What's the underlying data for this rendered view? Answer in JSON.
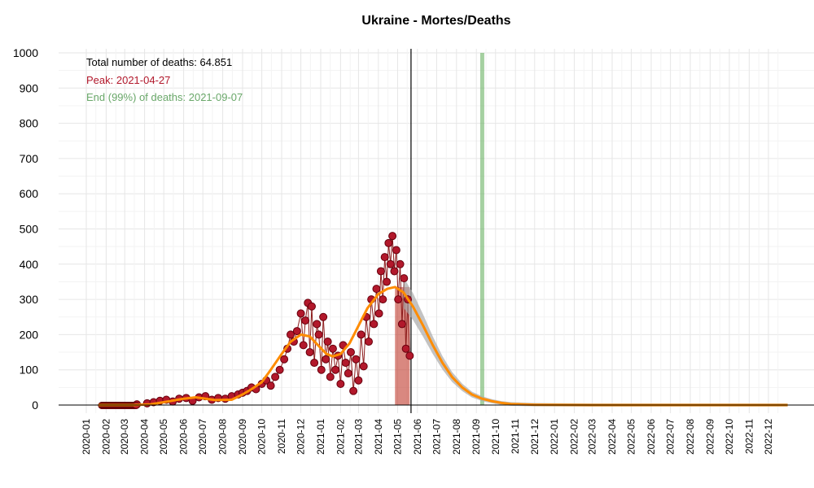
{
  "chart_data": {
    "type": "scatter",
    "title": "Ukraine - Mortes/Deaths",
    "xlabel": "",
    "ylabel": "",
    "ylim": [
      0,
      1000
    ],
    "yticks": [
      0,
      100,
      200,
      300,
      400,
      500,
      600,
      700,
      800,
      900,
      1000
    ],
    "xlim": [
      "2019-12-10",
      "2023-01-10"
    ],
    "xticks": [
      "2020-01",
      "2020-02",
      "2020-03",
      "2020-04",
      "2020-05",
      "2020-06",
      "2020-07",
      "2020-08",
      "2020-09",
      "2020-10",
      "2020-11",
      "2020-12",
      "2021-01",
      "2021-02",
      "2021-03",
      "2021-04",
      "2021-05",
      "2021-06",
      "2021-07",
      "2021-08",
      "2021-09",
      "2021-10",
      "2021-11",
      "2021-12",
      "2022-01",
      "2022-02",
      "2022-03",
      "2022-04",
      "2022-05",
      "2022-06",
      "2022-07",
      "2022-08",
      "2022-09",
      "2022-10",
      "2022-11",
      "2022-12"
    ],
    "grid": true,
    "annotations": {
      "total": "Total number of deaths: 64.851",
      "peak": "Peak: 2021-04-27",
      "end": "End (99%) of deaths: 2021-09-07"
    },
    "colors": {
      "points": "#b2182b",
      "point_edge": "#67000d",
      "fit": "#ff8c00",
      "peak_band": "#c0392b",
      "end_band": "#74b76f",
      "total_text": "#000000",
      "peak_text": "#b2182b",
      "end_text": "#6aa86a",
      "band_gray": "#a9a9a9"
    },
    "reference_lines": {
      "today": "2021-05-22",
      "peak_band": [
        "2021-04-27",
        "2021-05-20"
      ],
      "end_band": [
        "2021-09-07",
        "2021-09-09"
      ]
    },
    "fit_curve": {
      "dates": [
        "2020-01-20",
        "2020-02-15",
        "2020-03-15",
        "2020-04-10",
        "2020-05-01",
        "2020-06-01",
        "2020-06-20",
        "2020-07-20",
        "2020-08-15",
        "2020-09-01",
        "2020-09-15",
        "2020-10-01",
        "2020-10-15",
        "2020-11-01",
        "2020-11-15",
        "2020-12-01",
        "2020-12-15",
        "2020-12-25",
        "2021-01-10",
        "2021-01-20",
        "2021-02-01",
        "2021-02-15",
        "2021-03-01",
        "2021-03-15",
        "2021-04-01",
        "2021-04-15",
        "2021-04-27",
        "2021-05-10",
        "2021-05-25",
        "2021-06-10",
        "2021-06-25",
        "2021-07-10",
        "2021-07-25",
        "2021-08-10",
        "2021-08-25",
        "2021-09-10",
        "2021-09-25",
        "2021-10-10",
        "2021-10-25",
        "2021-11-10",
        "2021-12-01",
        "2022-01-01",
        "2022-03-01",
        "2022-06-01",
        "2022-09-01",
        "2022-12-31"
      ],
      "values": [
        0,
        0,
        0,
        2,
        8,
        18,
        22,
        14,
        15,
        30,
        45,
        65,
        100,
        145,
        180,
        200,
        195,
        175,
        145,
        138,
        145,
        175,
        225,
        275,
        315,
        330,
        335,
        320,
        280,
        225,
        170,
        120,
        80,
        50,
        30,
        18,
        11,
        6,
        3,
        2,
        1,
        0.5,
        0,
        0,
        0,
        0
      ]
    },
    "points": {
      "dates": [
        "2020-03-20",
        "2020-04-05",
        "2020-04-15",
        "2020-04-25",
        "2020-05-05",
        "2020-05-15",
        "2020-05-25",
        "2020-06-05",
        "2020-06-15",
        "2020-06-25",
        "2020-07-05",
        "2020-07-15",
        "2020-07-25",
        "2020-08-05",
        "2020-08-15",
        "2020-08-25",
        "2020-09-01",
        "2020-09-08",
        "2020-09-15",
        "2020-09-22",
        "2020-10-01",
        "2020-10-08",
        "2020-10-15",
        "2020-10-22",
        "2020-10-29",
        "2020-11-05",
        "2020-11-10",
        "2020-11-15",
        "2020-11-20",
        "2020-11-25",
        "2020-12-01",
        "2020-12-05",
        "2020-12-08",
        "2020-12-12",
        "2020-12-15",
        "2020-12-18",
        "2020-12-22",
        "2020-12-26",
        "2020-12-29",
        "2021-01-02",
        "2021-01-05",
        "2021-01-09",
        "2021-01-12",
        "2021-01-16",
        "2021-01-20",
        "2021-01-24",
        "2021-01-28",
        "2021-02-01",
        "2021-02-05",
        "2021-02-09",
        "2021-02-13",
        "2021-02-17",
        "2021-02-21",
        "2021-02-25",
        "2021-03-01",
        "2021-03-05",
        "2021-03-09",
        "2021-03-13",
        "2021-03-17",
        "2021-03-21",
        "2021-03-25",
        "2021-03-29",
        "2021-04-02",
        "2021-04-05",
        "2021-04-08",
        "2021-04-11",
        "2021-04-14",
        "2021-04-17",
        "2021-04-20",
        "2021-04-23",
        "2021-04-26",
        "2021-04-29",
        "2021-05-02",
        "2021-05-05",
        "2021-05-08",
        "2021-05-11",
        "2021-05-14",
        "2021-05-17",
        "2021-05-20"
      ],
      "values": [
        2,
        5,
        8,
        12,
        15,
        10,
        18,
        20,
        12,
        22,
        25,
        15,
        20,
        18,
        25,
        30,
        35,
        40,
        50,
        45,
        60,
        70,
        55,
        80,
        100,
        130,
        160,
        200,
        180,
        210,
        260,
        170,
        240,
        290,
        150,
        280,
        120,
        230,
        200,
        100,
        250,
        130,
        180,
        80,
        160,
        100,
        140,
        60,
        170,
        120,
        90,
        150,
        40,
        130,
        70,
        200,
        110,
        250,
        180,
        300,
        230,
        330,
        260,
        380,
        300,
        420,
        350,
        460,
        400,
        480,
        380,
        440,
        300,
        400,
        230,
        360,
        160,
        300,
        140
      ]
    }
  }
}
